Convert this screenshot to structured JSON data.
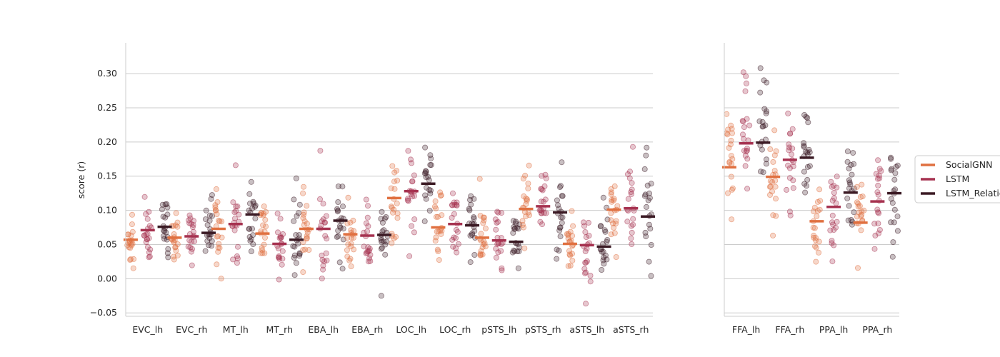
{
  "chart_data": {
    "type": "scatter",
    "ylabel": "score ($r$)",
    "ylabel_display": "score (r)",
    "ylim": [
      -0.055,
      0.345
    ],
    "yticks": [
      "−0.05",
      "0.00",
      "0.05",
      "0.10",
      "0.15",
      "0.20",
      "0.25",
      "0.30"
    ],
    "ytick_values": [
      -0.05,
      0.0,
      0.05,
      0.1,
      0.15,
      0.2,
      0.25,
      0.3
    ],
    "grid": "horizontal",
    "legend_position": "right",
    "series": [
      {
        "name": "SocialGNN",
        "color": "#e07040"
      },
      {
        "name": "LSTM",
        "color": "#a63250"
      },
      {
        "name": "LSTM_Relation",
        "color": "#3b1a24"
      }
    ],
    "panels": [
      {
        "categories": [
          "EVC_lh",
          "EVC_rh",
          "MT_lh",
          "MT_rh",
          "EBA_lh",
          "EBA_rh",
          "LOC_lh",
          "LOC_rh",
          "pSTS_lh",
          "pSTS_rh",
          "aSTS_lh",
          "aSTS_rh"
        ],
        "means": [
          [
            0.057,
            0.071,
            0.076
          ],
          [
            0.06,
            0.062,
            0.067
          ],
          [
            0.073,
            0.08,
            0.094
          ],
          [
            0.066,
            0.051,
            0.057
          ],
          [
            0.073,
            0.073,
            0.085
          ],
          [
            0.065,
            0.063,
            0.064
          ],
          [
            0.118,
            0.128,
            0.139
          ],
          [
            0.075,
            0.08,
            0.078
          ],
          [
            0.06,
            0.056,
            0.054
          ],
          [
            0.102,
            0.106,
            0.097
          ],
          [
            0.051,
            0.049,
            0.047
          ],
          [
            0.101,
            0.103,
            0.091
          ]
        ],
        "spread": [
          [
            0.035,
            0.032,
            0.03
          ],
          [
            0.032,
            0.032,
            0.028
          ],
          [
            0.04,
            0.045,
            0.042
          ],
          [
            0.035,
            0.032,
            0.04
          ],
          [
            0.04,
            0.04,
            0.04
          ],
          [
            0.035,
            0.035,
            0.035
          ],
          [
            0.04,
            0.038,
            0.04
          ],
          [
            0.035,
            0.035,
            0.035
          ],
          [
            0.035,
            0.035,
            0.035
          ],
          [
            0.04,
            0.04,
            0.04
          ],
          [
            0.035,
            0.04,
            0.04
          ],
          [
            0.045,
            0.045,
            0.05
          ]
        ]
      },
      {
        "categories": [
          "FFA_lh",
          "FFA_rh",
          "PPA_lh",
          "PPA_rh"
        ],
        "means": [
          [
            0.163,
            0.198,
            0.199
          ],
          [
            0.149,
            0.174,
            0.177
          ],
          [
            0.084,
            0.105,
            0.126
          ],
          [
            0.082,
            0.113,
            0.125
          ]
        ],
        "spread": [
          [
            0.06,
            0.07,
            0.06
          ],
          [
            0.055,
            0.06,
            0.05
          ],
          [
            0.05,
            0.05,
            0.045
          ],
          [
            0.055,
            0.05,
            0.05
          ]
        ]
      }
    ]
  }
}
